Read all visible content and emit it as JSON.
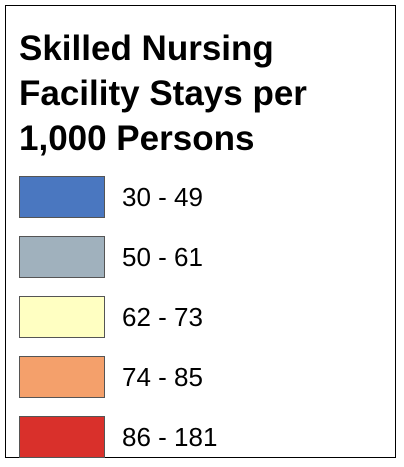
{
  "legend": {
    "title_lines": [
      "Skilled Nursing",
      "Facility Stays per",
      "1,000 Persons"
    ],
    "items": [
      {
        "label": "30 - 49",
        "color": "#4a77c0"
      },
      {
        "label": "50 - 61",
        "color": "#a0b1bd"
      },
      {
        "label": "62 - 73",
        "color": "#ffffc2"
      },
      {
        "label": "74 - 85",
        "color": "#f4a06b"
      },
      {
        "label": "86 - 181",
        "color": "#d9302b"
      }
    ]
  }
}
